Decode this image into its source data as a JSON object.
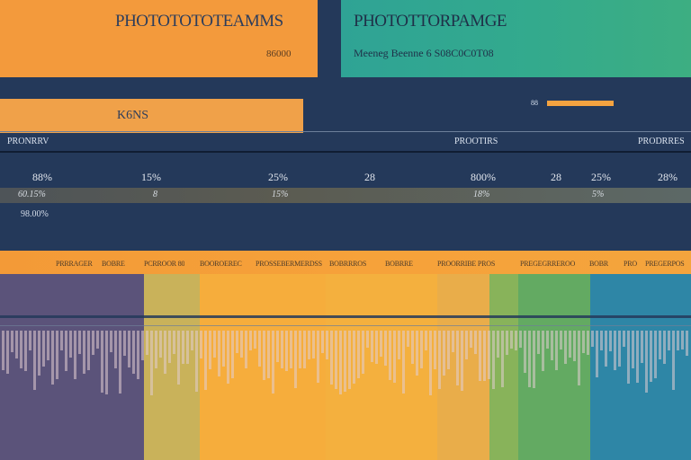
{
  "header_left": {
    "title": "PHOTOTOTOTEAMMS",
    "subtitle": "86000"
  },
  "header_right": {
    "title": "PHOTOTTORPAMGE",
    "subtitle": "Meeneg Beenne 6 S08C0C0T08"
  },
  "kpi": {
    "label": "K6NS"
  },
  "progress": {
    "label": "88",
    "value_percent": 100
  },
  "section": {
    "left": "PRONRRV",
    "center": "PROOTIRS",
    "right": "PRODRRES"
  },
  "stats": [
    "88%",
    "15%",
    "25%",
    "28",
    "800%",
    "28",
    "25%",
    "28%"
  ],
  "band_values": [
    "60.15%",
    "8",
    "15%",
    "18%",
    "5%"
  ],
  "side_value": "98.00%",
  "table_headers": [
    "PRRRAGER",
    "BOBRE",
    "PCRROOR 80",
    "BOOROEREC",
    "PROSSEBERMERDSS",
    "BOBRRROS",
    "BOBRRE",
    "PROORRIBE PROS",
    "PREGEGRREROO",
    "BOBR",
    "PRO",
    "PREGERPOS"
  ],
  "colors": {
    "orange": "#f39a3c",
    "teal": "#2fa395",
    "navy": "#24395a",
    "purple": "#5a527a",
    "yellow": "#f6ad3c",
    "green": "#6fae5a",
    "blue": "#2d84a8"
  }
}
